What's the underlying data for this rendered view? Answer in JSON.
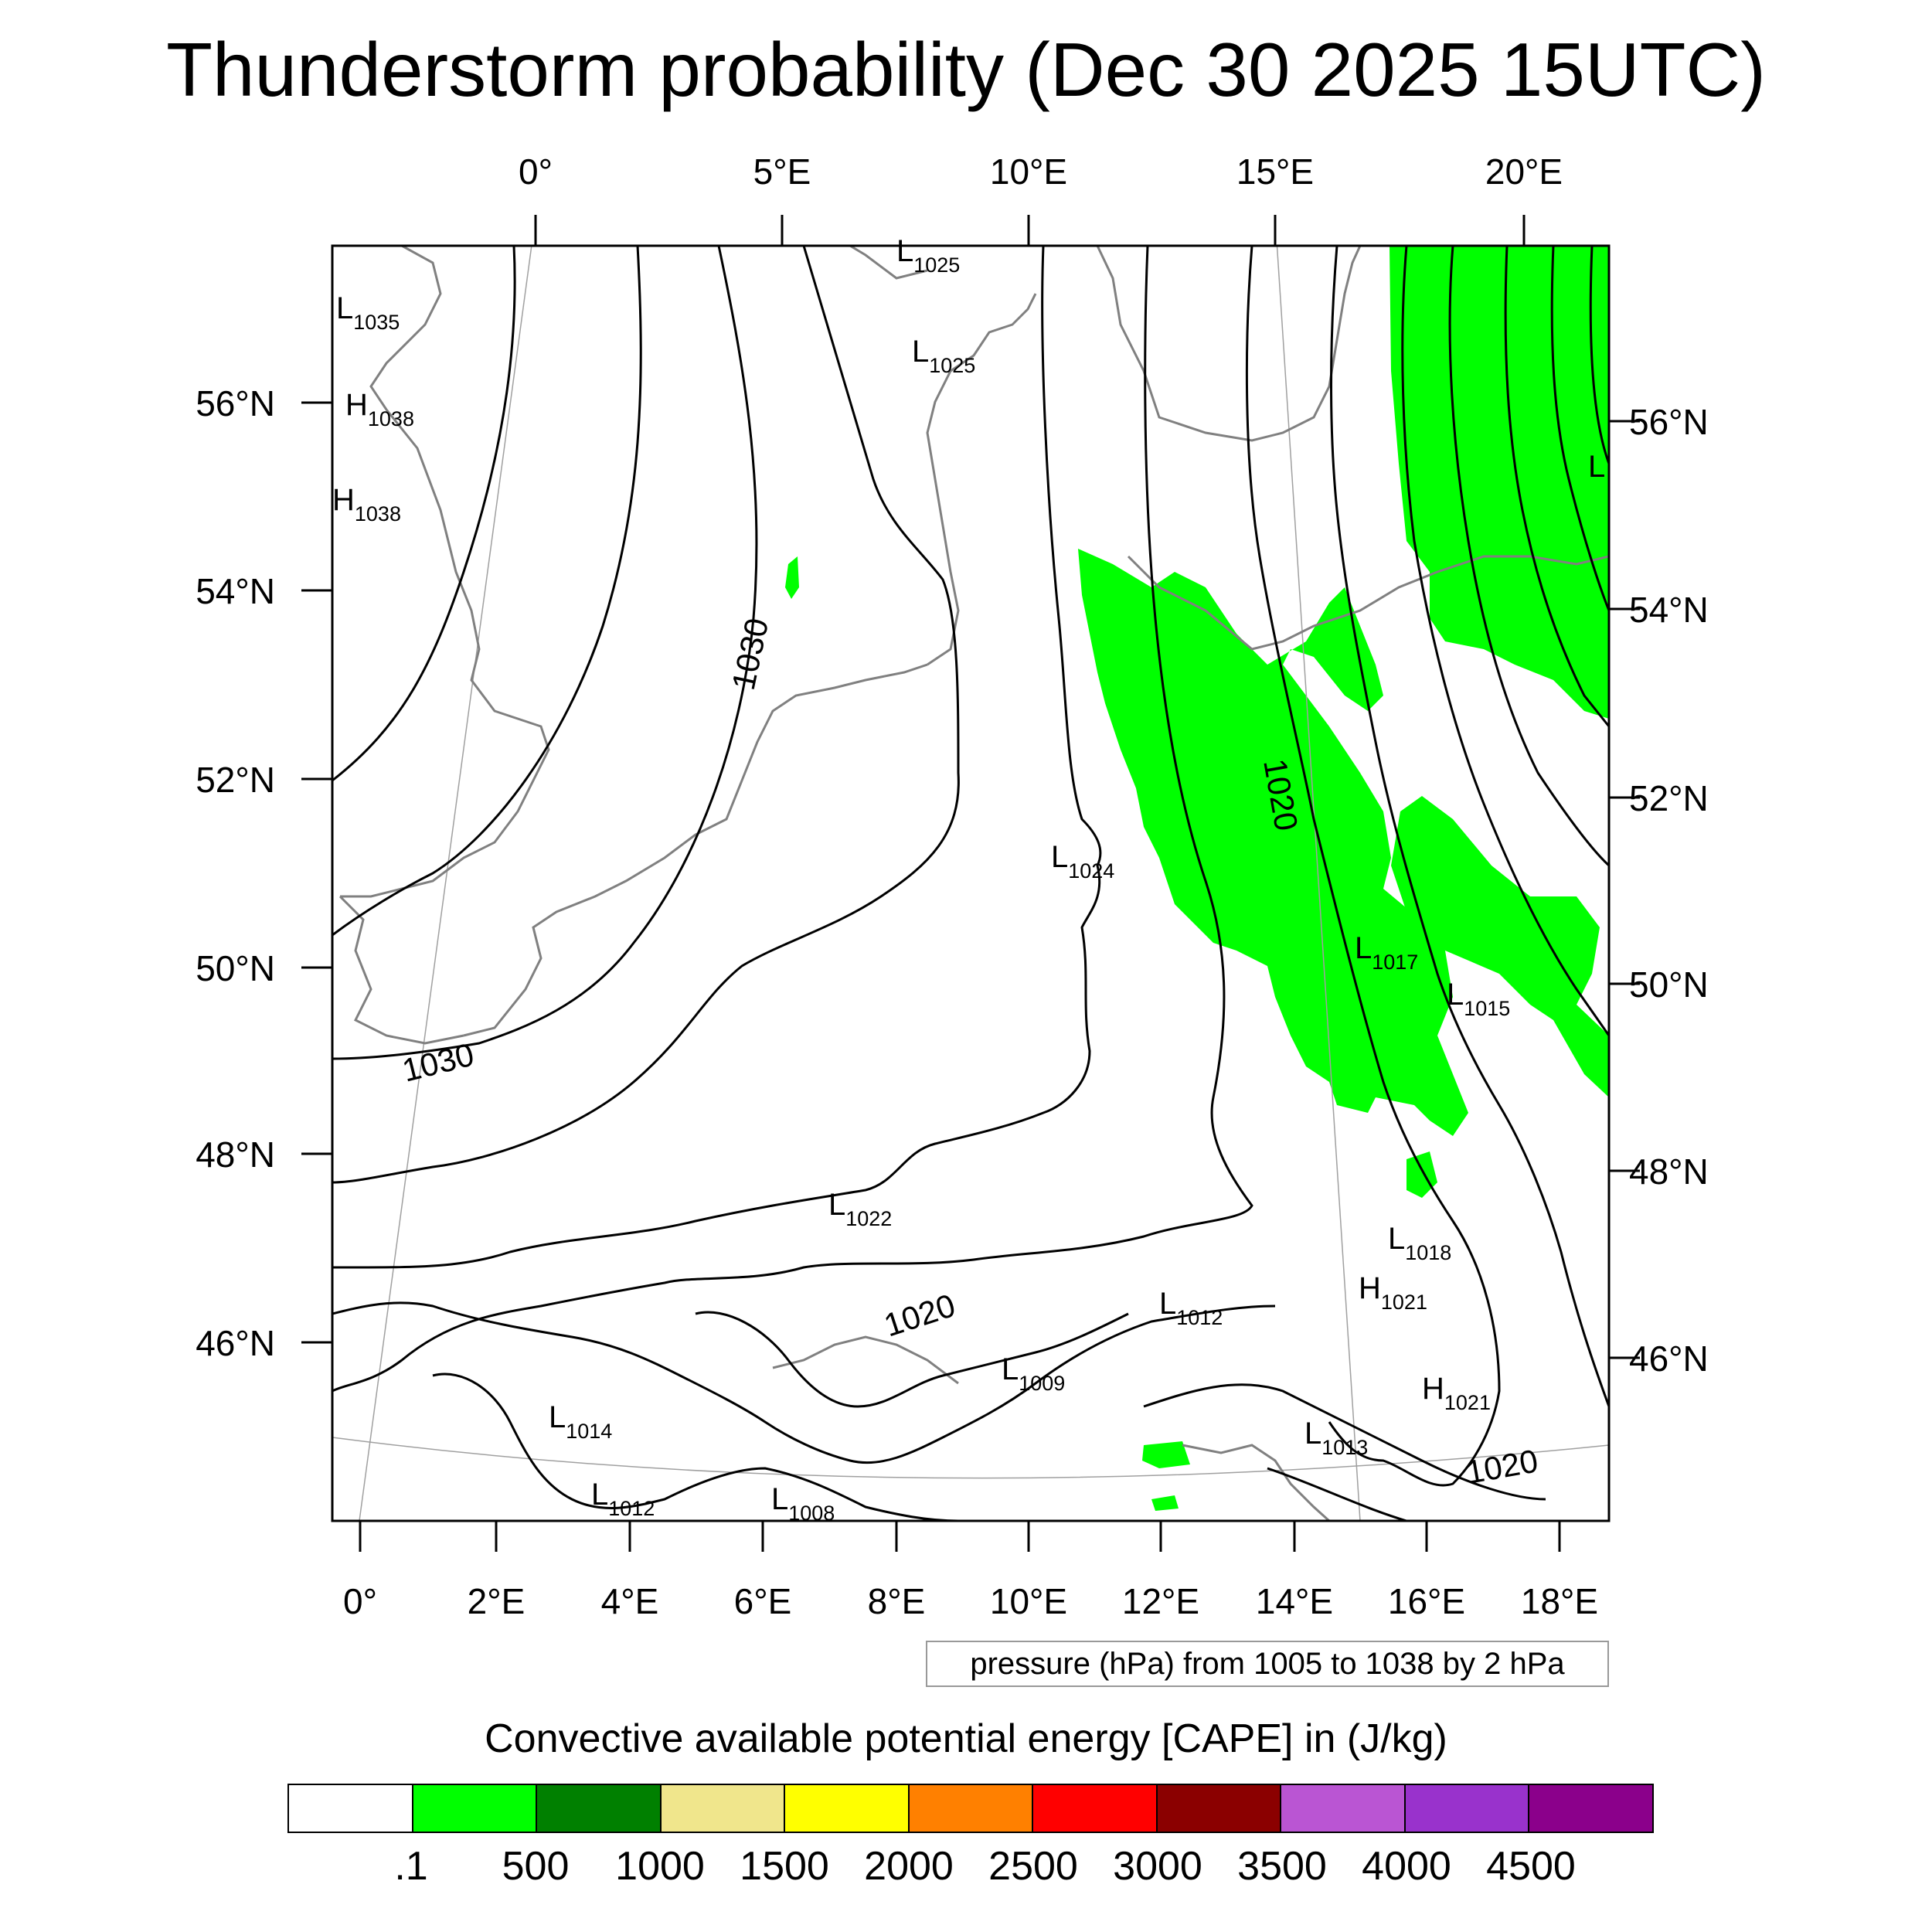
{
  "title": "Thunderstorm probability (Dec 30 2025 15UTC)",
  "map": {
    "top_lon_labels": [
      "0°",
      "5°E",
      "10°E",
      "15°E",
      "20°E"
    ],
    "bottom_lon_labels": [
      "0°",
      "2°E",
      "4°E",
      "6°E",
      "8°E",
      "10°E",
      "12°E",
      "14°E",
      "16°E",
      "18°E"
    ],
    "left_lat_labels": [
      "56°N",
      "54°N",
      "52°N",
      "50°N",
      "48°N",
      "46°N"
    ],
    "right_lat_labels": [
      "56°N",
      "54°N",
      "52°N",
      "50°N",
      "48°N",
      "46°N"
    ],
    "pressure_centers": [
      {
        "type": "L",
        "value": "1035"
      },
      {
        "type": "H",
        "value": "1038"
      },
      {
        "type": "H",
        "value": "1038"
      },
      {
        "type": "L",
        "value": "1025"
      },
      {
        "type": "L",
        "value": "1025"
      },
      {
        "type": "L",
        "value": "1024"
      },
      {
        "type": "L",
        "value": "1017"
      },
      {
        "type": "L",
        "value": "1015"
      },
      {
        "type": "L",
        "value": "1022"
      },
      {
        "type": "L",
        "value": "1018"
      },
      {
        "type": "H",
        "value": "1021"
      },
      {
        "type": "L",
        "value": "1012"
      },
      {
        "type": "L",
        "value": "1009"
      },
      {
        "type": "H",
        "value": "1021"
      },
      {
        "type": "L",
        "value": "1014"
      },
      {
        "type": "L",
        "value": "1013"
      },
      {
        "type": "L",
        "value": "1012"
      },
      {
        "type": "L",
        "value": "1008"
      },
      {
        "type": "L",
        "value": ""
      }
    ],
    "contour_labels": [
      "1030",
      "1030",
      "1020",
      "1020",
      "1020"
    ],
    "colors": {
      "cape_fill": "#00ff00",
      "isobar": "#000000",
      "coastline": "#808080",
      "graticule": "#a0a0a0"
    }
  },
  "pressure_note": "pressure (hPa) from 1005 to 1038 by 2 hPa",
  "colorbar": {
    "title": "Convective available potential energy [CAPE] in (J/kg)",
    "colors": [
      "#ffffff",
      "#00ff00",
      "#008000",
      "#f0e68c",
      "#ffff00",
      "#ff8000",
      "#ff0000",
      "#8b0000",
      "#ba55d3",
      "#9932cc",
      "#8b008b"
    ],
    "ticks": [
      ".1",
      "500",
      "1000",
      "1500",
      "2000",
      "2500",
      "3000",
      "3500",
      "4000",
      "4500"
    ]
  }
}
